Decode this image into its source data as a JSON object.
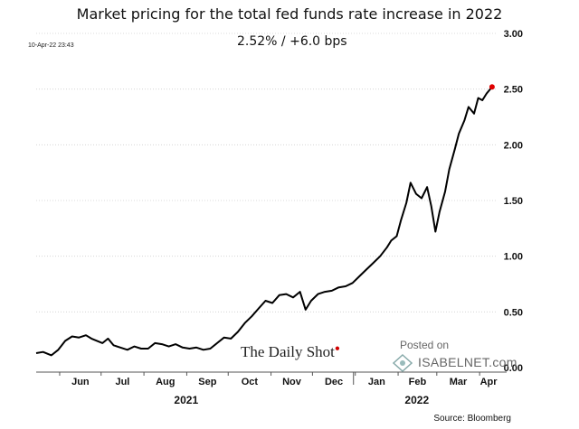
{
  "chart_data": {
    "type": "line",
    "title": "Market pricing for the total fed funds rate increase in 2022",
    "timestamp": "10-Apr-22 23:43",
    "current_label": "2.52%  /  +6.0 bps",
    "y_ticks": [
      "0.00",
      "0.50",
      "1.00",
      "1.50",
      "2.00",
      "2.50",
      "3.00"
    ],
    "ylim": [
      0,
      3
    ],
    "x_range": [
      "2021-05-15",
      "2022-04-14"
    ],
    "month_ticks": [
      {
        "label": "Jun",
        "date": "2021-06-01"
      },
      {
        "label": "Jul",
        "date": "2021-07-01"
      },
      {
        "label": "Aug",
        "date": "2021-08-01"
      },
      {
        "label": "Sep",
        "date": "2021-09-01"
      },
      {
        "label": "Oct",
        "date": "2021-10-01"
      },
      {
        "label": "Nov",
        "date": "2021-11-01"
      },
      {
        "label": "Dec",
        "date": "2021-12-01"
      },
      {
        "label": "Jan",
        "date": "2022-01-01"
      },
      {
        "label": "Feb",
        "date": "2022-02-01"
      },
      {
        "label": "Mar",
        "date": "2022-03-01"
      },
      {
        "label": "Apr",
        "date": "2022-04-01"
      }
    ],
    "years": [
      {
        "label": "2021",
        "date": "2021-09-01"
      },
      {
        "label": "2022",
        "date": "2022-02-15"
      }
    ],
    "grid": true,
    "line_color": "#000000",
    "endpoint_color": "#e00000",
    "series": [
      {
        "points": [
          [
            "2021-05-15",
            0.13
          ],
          [
            "2021-05-20",
            0.14
          ],
          [
            "2021-05-26",
            0.11
          ],
          [
            "2021-05-31",
            0.16
          ],
          [
            "2021-06-05",
            0.24
          ],
          [
            "2021-06-10",
            0.28
          ],
          [
            "2021-06-15",
            0.27
          ],
          [
            "2021-06-20",
            0.29
          ],
          [
            "2021-06-24",
            0.26
          ],
          [
            "2021-06-28",
            0.24
          ],
          [
            "2021-07-02",
            0.22
          ],
          [
            "2021-07-06",
            0.26
          ],
          [
            "2021-07-10",
            0.2
          ],
          [
            "2021-07-15",
            0.18
          ],
          [
            "2021-07-20",
            0.16
          ],
          [
            "2021-07-25",
            0.19
          ],
          [
            "2021-07-30",
            0.17
          ],
          [
            "2021-08-04",
            0.17
          ],
          [
            "2021-08-09",
            0.22
          ],
          [
            "2021-08-14",
            0.21
          ],
          [
            "2021-08-19",
            0.19
          ],
          [
            "2021-08-24",
            0.21
          ],
          [
            "2021-08-29",
            0.18
          ],
          [
            "2021-09-03",
            0.17
          ],
          [
            "2021-09-08",
            0.18
          ],
          [
            "2021-09-13",
            0.16
          ],
          [
            "2021-09-18",
            0.17
          ],
          [
            "2021-09-23",
            0.22
          ],
          [
            "2021-09-28",
            0.27
          ],
          [
            "2021-10-03",
            0.26
          ],
          [
            "2021-10-08",
            0.32
          ],
          [
            "2021-10-13",
            0.4
          ],
          [
            "2021-10-18",
            0.46
          ],
          [
            "2021-10-23",
            0.53
          ],
          [
            "2021-10-28",
            0.6
          ],
          [
            "2021-11-02",
            0.58
          ],
          [
            "2021-11-07",
            0.65
          ],
          [
            "2021-11-12",
            0.66
          ],
          [
            "2021-11-17",
            0.63
          ],
          [
            "2021-11-22",
            0.68
          ],
          [
            "2021-11-26",
            0.52
          ],
          [
            "2021-11-30",
            0.6
          ],
          [
            "2021-12-05",
            0.66
          ],
          [
            "2021-12-10",
            0.68
          ],
          [
            "2021-12-15",
            0.69
          ],
          [
            "2021-12-20",
            0.72
          ],
          [
            "2021-12-25",
            0.73
          ],
          [
            "2021-12-30",
            0.76
          ],
          [
            "2022-01-04",
            0.82
          ],
          [
            "2022-01-09",
            0.88
          ],
          [
            "2022-01-14",
            0.94
          ],
          [
            "2022-01-19",
            1.0
          ],
          [
            "2022-01-24",
            1.08
          ],
          [
            "2022-01-27",
            1.14
          ],
          [
            "2022-01-31",
            1.18
          ],
          [
            "2022-02-03",
            1.32
          ],
          [
            "2022-02-07",
            1.48
          ],
          [
            "2022-02-10",
            1.66
          ],
          [
            "2022-02-14",
            1.56
          ],
          [
            "2022-02-18",
            1.52
          ],
          [
            "2022-02-22",
            1.62
          ],
          [
            "2022-02-25",
            1.45
          ],
          [
            "2022-02-28",
            1.22
          ],
          [
            "2022-03-03",
            1.4
          ],
          [
            "2022-03-07",
            1.58
          ],
          [
            "2022-03-10",
            1.78
          ],
          [
            "2022-03-14",
            1.96
          ],
          [
            "2022-03-17",
            2.1
          ],
          [
            "2022-03-21",
            2.22
          ],
          [
            "2022-03-24",
            2.34
          ],
          [
            "2022-03-28",
            2.28
          ],
          [
            "2022-03-31",
            2.42
          ],
          [
            "2022-04-03",
            2.4
          ],
          [
            "2022-04-06",
            2.46
          ],
          [
            "2022-04-10",
            2.52
          ]
        ]
      }
    ]
  },
  "brand": {
    "name": "The Daily Shot",
    "posted_on": "Posted on",
    "isabelnet": "ISABELNET.com"
  },
  "source": "Source: Bloomberg"
}
